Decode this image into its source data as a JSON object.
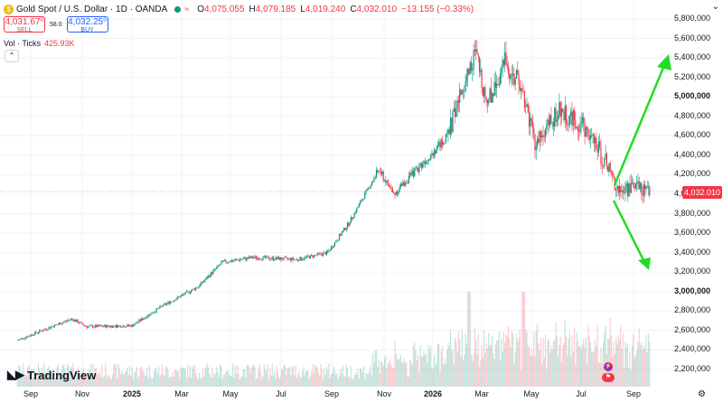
{
  "header": {
    "title": "Gold Spot / U.S. Dollar · 1D · OANDA",
    "market_status_icon": "green-dot-icon",
    "o_label": "O",
    "o_value": "4,075.055",
    "h_label": "H",
    "h_value": "4,079.185",
    "l_label": "L",
    "l_value": "4,019.240",
    "c_label": "C",
    "c_value": "4,032.010",
    "change": "−13.155 (−0.33%)"
  },
  "trade": {
    "sell_price": "4,031.67⁰",
    "sell_label": "SELL",
    "spread": "58.0",
    "buy_price": "4,032.25⁰",
    "buy_label": "BUY"
  },
  "volume_indicator": {
    "label": "Vol · Ticks",
    "value": "425.93K"
  },
  "current_price_tag": "4,032.010",
  "brand": "TradingView",
  "colors": {
    "up": "#089981",
    "down": "#f23645",
    "arrow": "#22dd22",
    "axis_text": "#131722"
  },
  "chart_data": {
    "type": "candlestick",
    "y_axis_labels": [
      "5,800,000",
      "5,600,000",
      "5,400,000",
      "5,200,000",
      "5,000,000",
      "4,800,000",
      "4,600,000",
      "4,400,000",
      "4,200,000",
      "4,000,000",
      "3,800,000",
      "3,600,000",
      "3,400,000",
      "3,200,000",
      "3,000,000",
      "2,800,000",
      "2,600,000",
      "2,400,000",
      "2,200,000"
    ],
    "y_axis_bold": [
      "5,000,000",
      "3,000,000"
    ],
    "x_axis_labels": [
      "Sep",
      "Nov",
      "2025",
      "Mar",
      "May",
      "Jul",
      "Sep",
      "Nov",
      "2026",
      "Mar",
      "May",
      "Jul",
      "Sep"
    ],
    "x_axis_bold": [
      "2025",
      "2026"
    ],
    "price_trajectory": [
      [
        2024.62,
        2500
      ],
      [
        2024.7,
        2600
      ],
      [
        2024.8,
        2720
      ],
      [
        2024.85,
        2640
      ],
      [
        2025.0,
        2650
      ],
      [
        2025.1,
        2850
      ],
      [
        2025.22,
        3050
      ],
      [
        2025.3,
        3300
      ],
      [
        2025.4,
        3350
      ],
      [
        2025.55,
        3330
      ],
      [
        2025.65,
        3400
      ],
      [
        2025.72,
        3700
      ],
      [
        2025.82,
        4250
      ],
      [
        2025.87,
        4000
      ],
      [
        2025.96,
        4300
      ],
      [
        2026.05,
        4600
      ],
      [
        2026.1,
        5100
      ],
      [
        2026.14,
        5450
      ],
      [
        2026.18,
        4950
      ],
      [
        2026.24,
        5350
      ],
      [
        2026.3,
        5050
      ],
      [
        2026.34,
        4500
      ],
      [
        2026.42,
        4850
      ],
      [
        2026.5,
        4700
      ],
      [
        2026.58,
        4300
      ],
      [
        2026.62,
        4020
      ],
      [
        2026.67,
        4100
      ],
      [
        2026.72,
        4032
      ]
    ],
    "volume_spikes": [
      [
        2026.12,
        1
      ],
      [
        2026.3,
        1
      ]
    ],
    "annotations": [
      {
        "type": "arrow",
        "direction": "up",
        "color": "#22dd22"
      },
      {
        "type": "arrow",
        "direction": "down",
        "color": "#22dd22"
      }
    ]
  }
}
